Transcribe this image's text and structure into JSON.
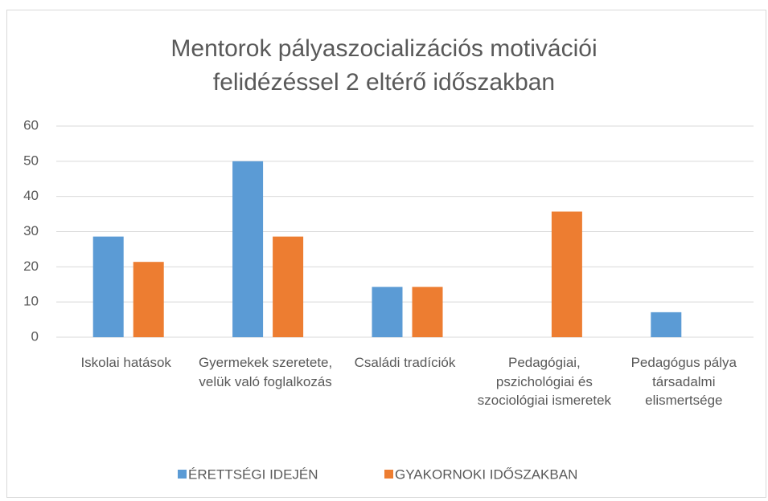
{
  "chart_data": {
    "type": "bar",
    "title": "Mentorok pályaszocializációs motivációi felidézéssel 2 eltérő időszakban",
    "categories": [
      "Iskolai hatások",
      "Gyermekek szeretete, velük való foglalkozás",
      "Családi tradíciók",
      "Pedagógiai, pszichológiai és szociológiai ismeretek",
      "Pedagógus pálya társadalmi elismertsége"
    ],
    "series": [
      {
        "name": "ÉRETTSÉGI IDEJÉN",
        "color": "#5b9bd5",
        "values": [
          28.6,
          50,
          14.3,
          0,
          7.1
        ]
      },
      {
        "name": "GYAKORNOKI IDŐSZAKBAN",
        "color": "#ed7d31",
        "values": [
          21.4,
          28.6,
          14.3,
          35.7,
          0
        ]
      }
    ],
    "ylim": [
      0,
      60
    ],
    "yticks": [
      0,
      10,
      20,
      30,
      40,
      50,
      60
    ],
    "grid": true,
    "legend": "bottom"
  }
}
